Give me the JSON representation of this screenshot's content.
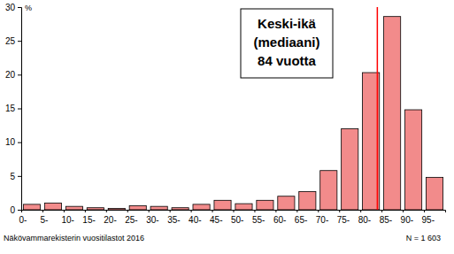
{
  "chart_data": {
    "type": "histogram",
    "y_label": "%",
    "bins": [
      0,
      5,
      10,
      15,
      20,
      25,
      30,
      35,
      40,
      45,
      50,
      55,
      60,
      65,
      70,
      75,
      80,
      85,
      90,
      95,
      100
    ],
    "values": [
      0.8,
      1.0,
      0.5,
      0.3,
      0.2,
      0.6,
      0.5,
      0.3,
      0.8,
      1.4,
      0.9,
      1.4,
      2.0,
      2.7,
      5.8,
      12.0,
      20.3,
      28.6,
      14.8,
      4.8
    ],
    "color": "#f28b8b",
    "xlim": [
      0,
      100
    ],
    "xticks": [
      {
        "value": 0,
        "label": "0-"
      },
      {
        "value": 5,
        "label": "5-"
      },
      {
        "value": 10,
        "label": "10-"
      },
      {
        "value": 15,
        "label": "15-"
      },
      {
        "value": 20,
        "label": "20-"
      },
      {
        "value": 25,
        "label": "25-"
      },
      {
        "value": 30,
        "label": "30-"
      },
      {
        "value": 35,
        "label": "35-"
      },
      {
        "value": 40,
        "label": "40-"
      },
      {
        "value": 45,
        "label": "45-"
      },
      {
        "value": 50,
        "label": "50-"
      },
      {
        "value": 55,
        "label": "55-"
      },
      {
        "value": 60,
        "label": "60-"
      },
      {
        "value": 65,
        "label": "65-"
      },
      {
        "value": 70,
        "label": "70-"
      },
      {
        "value": 75,
        "label": "75-"
      },
      {
        "value": 80,
        "label": "80-"
      },
      {
        "value": 85,
        "label": "85-"
      },
      {
        "value": 90,
        "label": "90-"
      },
      {
        "value": 95,
        "label": "95-"
      }
    ],
    "ylim": [
      0,
      30
    ],
    "yticks": [
      0,
      5,
      10,
      15,
      20,
      25,
      30
    ],
    "grid": false,
    "median": 84,
    "annotation": [
      "Keski-ikä",
      "(mediaani)",
      "84 vuotta"
    ],
    "source": "Näkövammarekisterin vuositilastot  2016",
    "note": "N = 1 603"
  }
}
